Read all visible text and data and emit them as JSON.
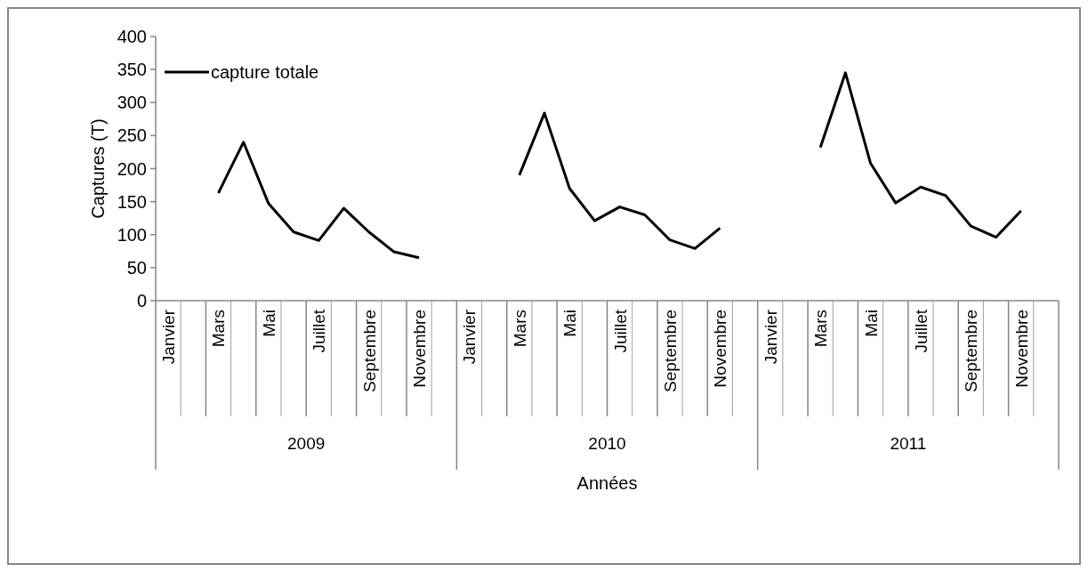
{
  "chart_data": {
    "type": "line",
    "ylabel": "Captures (T)",
    "xlabel": "Années",
    "categories": [
      "Janvier",
      null,
      "Mars",
      null,
      "Mai",
      null,
      "Juillet",
      null,
      "Septembre",
      null,
      "Novembre",
      null,
      "Janvier",
      null,
      "Mars",
      null,
      "Mai",
      null,
      "Juillet",
      null,
      "Septembre",
      null,
      "Novembre",
      null,
      "Janvier",
      null,
      "Mars",
      null,
      "Mai",
      null,
      "Juillet",
      null,
      "Septembre",
      null,
      "Novembre",
      null
    ],
    "series": [
      {
        "name": "capture totale",
        "color": "#000000",
        "values": [
          null,
          null,
          163,
          240,
          147,
          104,
          91,
          140,
          104,
          74,
          65,
          null,
          null,
          null,
          190,
          284,
          170,
          121,
          142,
          130,
          92,
          79,
          110,
          null,
          null,
          null,
          232,
          345,
          208,
          148,
          172,
          159,
          113,
          96,
          136,
          null
        ]
      }
    ],
    "annotations": [
      "2009",
      "2010",
      "2011"
    ],
    "ylim": [
      0,
      400
    ],
    "yticks": [
      0,
      50,
      100,
      150,
      200,
      250,
      300,
      350,
      400
    ],
    "legend": "top left",
    "grid": false,
    "marker": "none",
    "line_style": "solid"
  }
}
